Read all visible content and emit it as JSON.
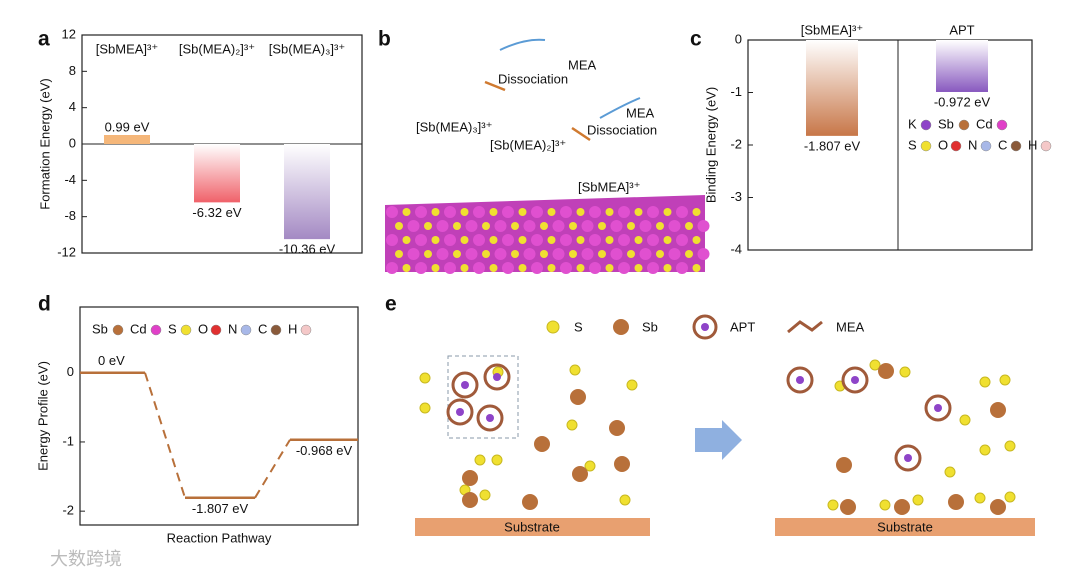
{
  "chart_data": [
    {
      "type": "bar",
      "panel": "a",
      "categories": [
        "[SbMEA]³⁺",
        "[Sb(MEA)₂]³⁺",
        "[Sb(MEA)₃]³⁺"
      ],
      "values": [
        0.99,
        -6.32,
        -10.36
      ],
      "value_labels": [
        "0.99 eV",
        "-6.32 eV",
        "-10.36 eV"
      ],
      "colors": [
        "#f5b77a",
        "#f0646c",
        "#a58bc4"
      ],
      "ylabel": "Formation Energy (eV)",
      "ylim": [
        -12,
        12
      ],
      "yticks": [
        -12,
        -8,
        -4,
        0,
        4,
        8,
        12
      ]
    },
    {
      "type": "bar",
      "panel": "c",
      "categories": [
        "[SbMEA]³⁺",
        "APT"
      ],
      "values": [
        -1.807,
        -0.972
      ],
      "value_labels": [
        "-1.807 eV",
        "-0.972 eV"
      ],
      "colors": [
        "#c8784a",
        "#8a5cc0"
      ],
      "ylabel": "Binding Energy (eV)",
      "ylim": [
        -4,
        0
      ],
      "yticks": [
        -4,
        -3,
        -2,
        -1,
        0
      ],
      "legend": [
        {
          "name": "K",
          "color": "#8e44c8"
        },
        {
          "name": "Sb",
          "color": "#b8703a"
        },
        {
          "name": "Cd",
          "color": "#e040c8"
        },
        {
          "name": "S",
          "color": "#f0e030"
        },
        {
          "name": "O",
          "color": "#e03030"
        },
        {
          "name": "N",
          "color": "#a8b8e8"
        },
        {
          "name": "C",
          "color": "#8a5a3a"
        },
        {
          "name": "H",
          "color": "#f4c8c8"
        }
      ]
    },
    {
      "type": "line",
      "panel": "d",
      "values": [
        0,
        -1.807,
        -0.968
      ],
      "value_labels": [
        "0 eV",
        "-1.807 eV",
        "-0.968 eV"
      ],
      "color": "#b8703a",
      "xlabel": "Reaction Pathway",
      "ylabel": "Energy Profile (eV)",
      "ylim": [
        -2.2,
        0.95
      ],
      "yticks": [
        -2,
        -1,
        0
      ],
      "legend": [
        {
          "name": "Sb",
          "color": "#b8703a"
        },
        {
          "name": "Cd",
          "color": "#e040c8"
        },
        {
          "name": "S",
          "color": "#f0e030"
        },
        {
          "name": "O",
          "color": "#e03030"
        },
        {
          "name": "N",
          "color": "#a8b8e8"
        },
        {
          "name": "C",
          "color": "#8a5a3a"
        },
        {
          "name": "H",
          "color": "#f4c8c8"
        }
      ]
    }
  ],
  "panel_labels": [
    "a",
    "b",
    "c",
    "d",
    "e"
  ],
  "panel_b": {
    "texts": [
      "MEA",
      "Dissociation",
      "MEA",
      "Dissociation",
      "[Sb(MEA)₃]³⁺",
      "[Sb(MEA)₂]³⁺",
      "[SbMEA]³⁺"
    ]
  },
  "panel_e": {
    "legend": [
      "S",
      "Sb",
      "APT",
      "MEA"
    ],
    "substrate": [
      "Substrate",
      "Substrate"
    ]
  },
  "watermark": "大数跨境"
}
